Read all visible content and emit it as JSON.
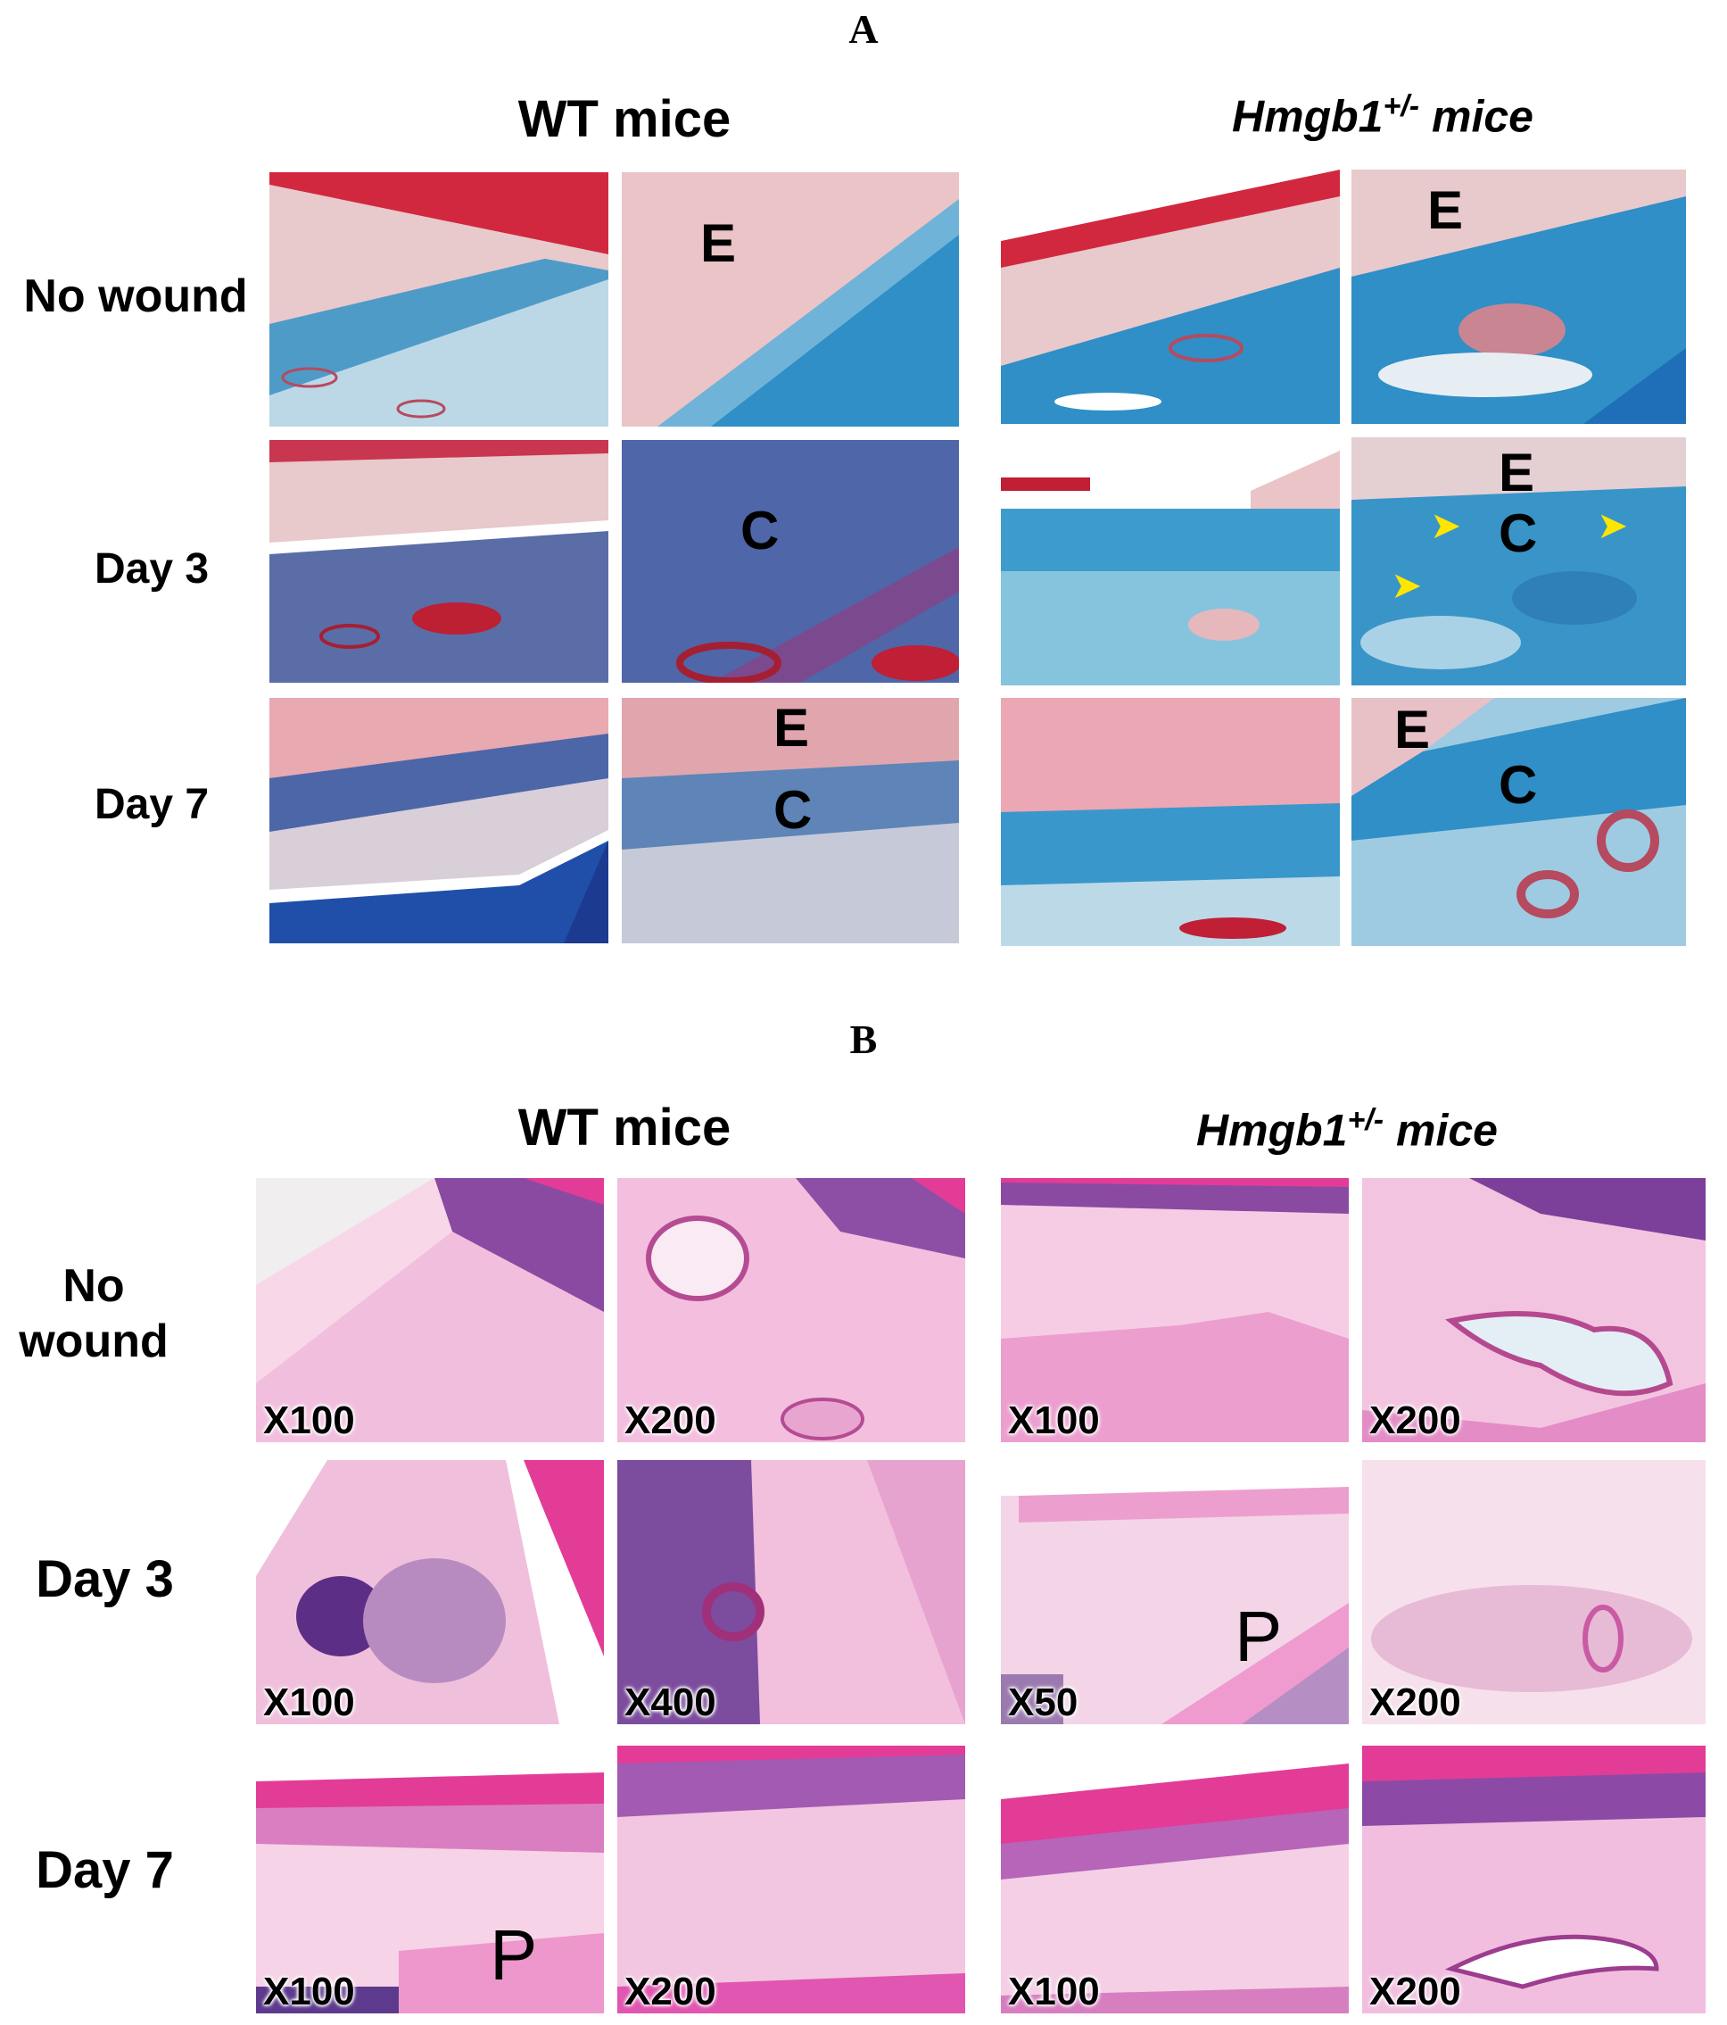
{
  "panel_a": {
    "letter": "A",
    "wt_title": "WT mice",
    "het_title_main": "Hmgb1",
    "het_title_sup": "+/-",
    "het_title_rest": " mice",
    "rows": [
      "No wound",
      "Day 3",
      "Day 7"
    ],
    "tile_letters": {
      "wt_nowound_hi": "E",
      "het_nowound_hi": "E",
      "wt_day3_hi": "C",
      "het_day3_hi_e": "E",
      "het_day3_hi_c": "C",
      "wt_day7_hi_e": "E",
      "wt_day7_hi_c": "C",
      "het_day7_hi_e": "E",
      "het_day7_hi_c": "C"
    },
    "arrow_glyph": "➤",
    "stain_colors": {
      "collagen": "#2f8fc6",
      "keratin": "#d2283f",
      "epithelium": "#eac4c6"
    }
  },
  "panel_b": {
    "letter": "B",
    "wt_title": "WT mice",
    "het_title_main": "Hmgb1",
    "het_title_sup": "+/-",
    "het_title_rest": " mice",
    "row_nowound_line1": "No",
    "row_nowound_line2": "wound",
    "rows": [
      "Day 3",
      "Day 7"
    ],
    "magnifications": {
      "wt_nowound_lo": "X100",
      "wt_nowound_hi": "X200",
      "het_nowound_lo": "X100",
      "het_nowound_hi": "X200",
      "wt_day3_lo": "X100",
      "wt_day3_hi": "X400",
      "het_day3_lo": "X50",
      "het_day3_hi": "X200",
      "wt_day7_lo": "X100",
      "wt_day7_hi": "X200",
      "het_day7_lo": "X100",
      "het_day7_hi": "X200"
    },
    "tile_letters": {
      "het_day3_lo": "P",
      "wt_day7_lo": "P"
    },
    "stain_colors": {
      "eosin": "#f0a9d2",
      "hematoxylin": "#8a4aa2",
      "keratin": "#e23c97"
    }
  }
}
